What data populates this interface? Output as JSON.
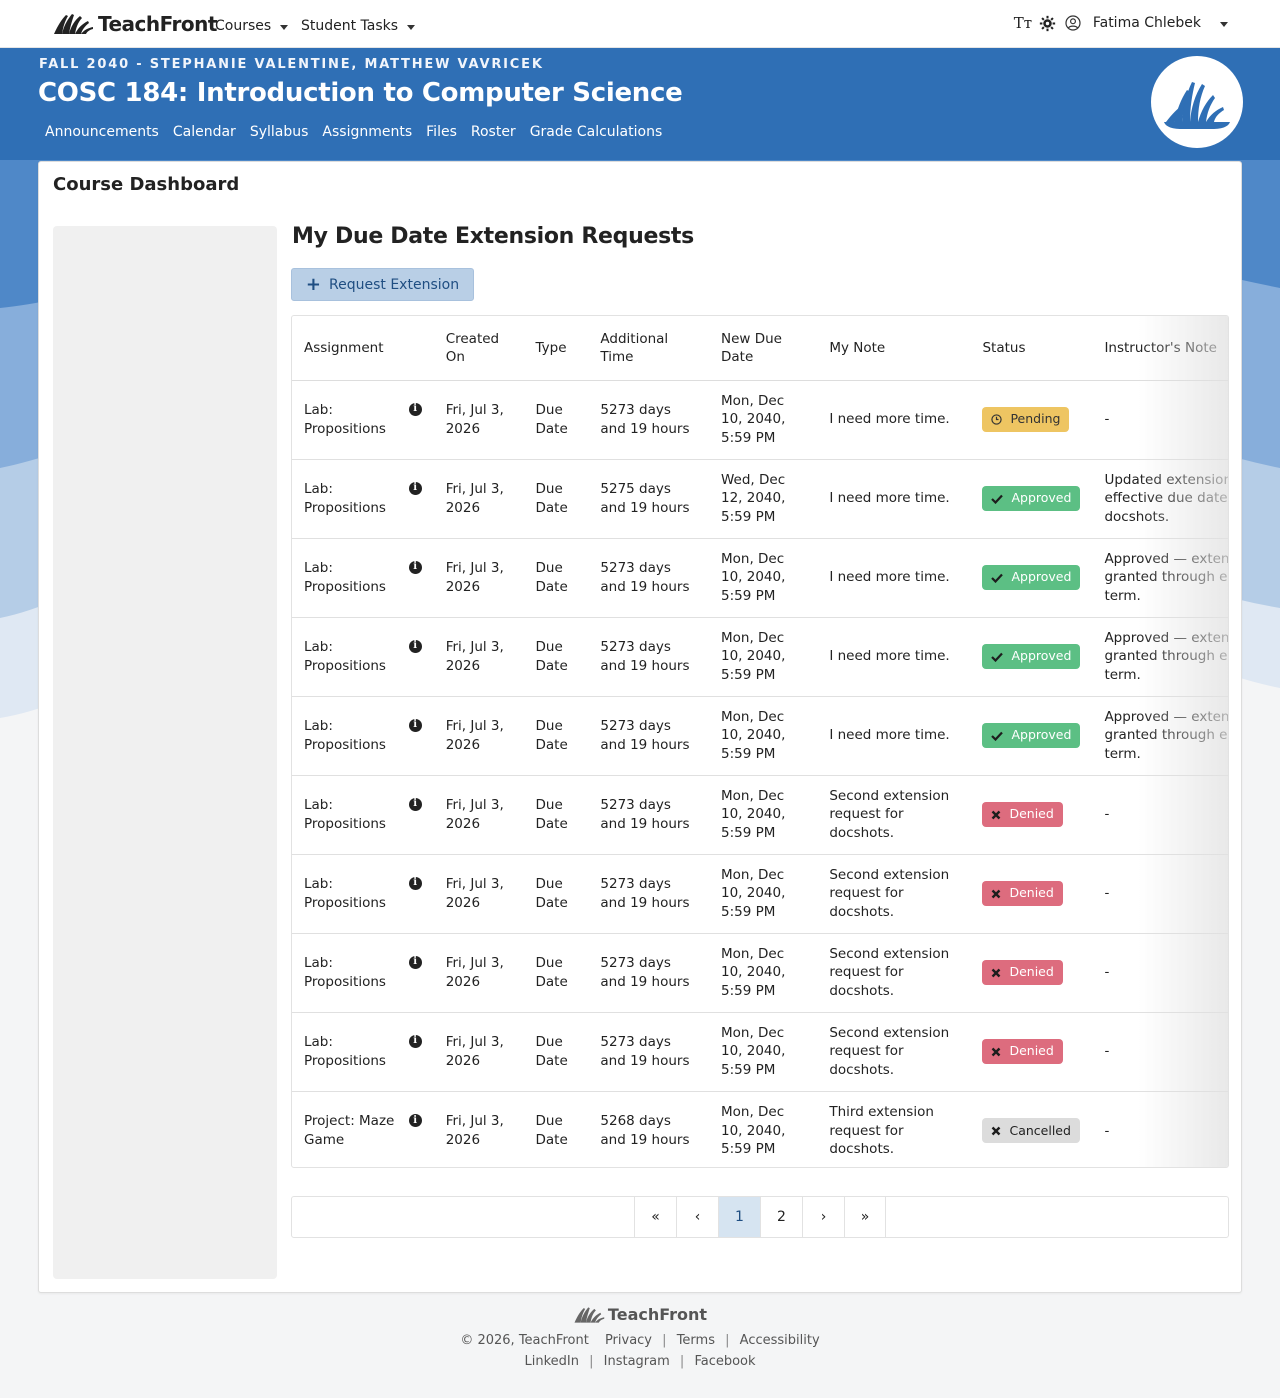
{
  "nav": {
    "brand": "TeachFront",
    "courses": "Courses",
    "student_tasks": "Student Tasks",
    "font_icon": "Tт",
    "user": "Fatima Chlebek"
  },
  "course": {
    "term": "FALL 2040 - STEPHANIE VALENTINE, MATTHEW VAVRICEK",
    "title": "COSC 184: Introduction to Computer Science",
    "links": [
      "Announcements",
      "Calendar",
      "Syllabus",
      "Assignments",
      "Files",
      "Roster",
      "Grade Calculations"
    ]
  },
  "card": {
    "title": "Course Dashboard"
  },
  "section": {
    "title": "My Due Date Extension Requests",
    "request_button": "Request Extension"
  },
  "table": {
    "headers": {
      "assignment": "Assignment",
      "created_on": "Created On",
      "type": "Type",
      "additional_time": "Additional Time",
      "new_due_date": "New Due Date",
      "my_note": "My Note",
      "status": "Status",
      "instructor_note": "Instructor's Note"
    },
    "rows": [
      {
        "assignment": "Lab: Propositions",
        "created": "Fri, Jul 3, 2026",
        "type": "Due Date",
        "additional": "5273 days and 19 hours",
        "new_due": "Mon, Dec 10, 2040, 5:59 PM",
        "note": "I need more time.",
        "status": "Pending",
        "instructor": "-"
      },
      {
        "assignment": "Lab: Propositions",
        "created": "Fri, Jul 3, 2026",
        "type": "Due Date",
        "additional": "5275 days and 19 hours",
        "new_due": "Wed, Dec 12, 2040, 5:59 PM",
        "note": "I need more time.",
        "status": "Approved",
        "instructor": "Updated extension effective due date t docshots."
      },
      {
        "assignment": "Lab: Propositions",
        "created": "Fri, Jul 3, 2026",
        "type": "Due Date",
        "additional": "5273 days and 19 hours",
        "new_due": "Mon, Dec 10, 2040, 5:59 PM",
        "note": "I need more time.",
        "status": "Approved",
        "instructor": "Approved — extens granted through en term."
      },
      {
        "assignment": "Lab: Propositions",
        "created": "Fri, Jul 3, 2026",
        "type": "Due Date",
        "additional": "5273 days and 19 hours",
        "new_due": "Mon, Dec 10, 2040, 5:59 PM",
        "note": "I need more time.",
        "status": "Approved",
        "instructor": "Approved — extens granted through en term."
      },
      {
        "assignment": "Lab: Propositions",
        "created": "Fri, Jul 3, 2026",
        "type": "Due Date",
        "additional": "5273 days and 19 hours",
        "new_due": "Mon, Dec 10, 2040, 5:59 PM",
        "note": "I need more time.",
        "status": "Approved",
        "instructor": "Approved — extens granted through en term."
      },
      {
        "assignment": "Lab: Propositions",
        "created": "Fri, Jul 3, 2026",
        "type": "Due Date",
        "additional": "5273 days and 19 hours",
        "new_due": "Mon, Dec 10, 2040, 5:59 PM",
        "note": "Second extension request for docshots.",
        "status": "Denied",
        "instructor": "-"
      },
      {
        "assignment": "Lab: Propositions",
        "created": "Fri, Jul 3, 2026",
        "type": "Due Date",
        "additional": "5273 days and 19 hours",
        "new_due": "Mon, Dec 10, 2040, 5:59 PM",
        "note": "Second extension request for docshots.",
        "status": "Denied",
        "instructor": "-"
      },
      {
        "assignment": "Lab: Propositions",
        "created": "Fri, Jul 3, 2026",
        "type": "Due Date",
        "additional": "5273 days and 19 hours",
        "new_due": "Mon, Dec 10, 2040, 5:59 PM",
        "note": "Second extension request for docshots.",
        "status": "Denied",
        "instructor": "-"
      },
      {
        "assignment": "Lab: Propositions",
        "created": "Fri, Jul 3, 2026",
        "type": "Due Date",
        "additional": "5273 days and 19 hours",
        "new_due": "Mon, Dec 10, 2040, 5:59 PM",
        "note": "Second extension request for docshots.",
        "status": "Denied",
        "instructor": "-"
      },
      {
        "assignment": "Project: Maze Game",
        "created": "Fri, Jul 3, 2026",
        "type": "Due Date",
        "additional": "5268 days and 19 hours",
        "new_due": "Mon, Dec 10, 2040, 5:59 PM",
        "note": "Third extension request for docshots.",
        "status": "Cancelled",
        "instructor": "-"
      }
    ]
  },
  "pagination": {
    "first": "«",
    "prev": "‹",
    "pages": [
      "1",
      "2"
    ],
    "current": "1",
    "next": "›",
    "last": "»"
  },
  "footer": {
    "brand": "TeachFront",
    "copyright": "© 2026, TeachFront",
    "links_row1": [
      "Privacy",
      "Terms",
      "Accessibility"
    ],
    "links_row2": [
      "LinkedIn",
      "Instagram",
      "Facebook"
    ]
  },
  "colors": {
    "header_blue": "#2f6fb5",
    "pending": "#eec562",
    "approved": "#5cbf84",
    "denied": "#dd6c7e",
    "cancelled": "#dcdcdc",
    "active_page": "#d6e4f1"
  }
}
